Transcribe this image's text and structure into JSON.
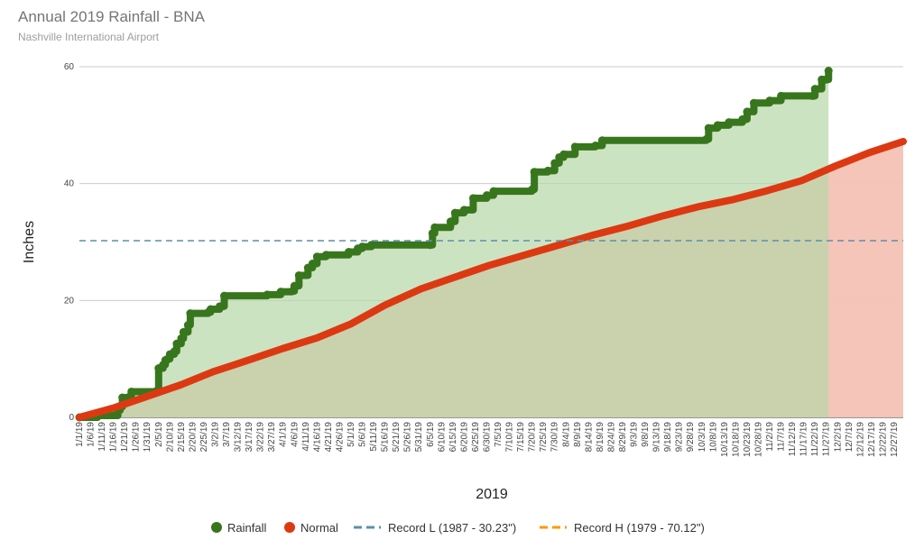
{
  "chart_data": {
    "type": "area",
    "title": "Annual 2019 Rainfall - BNA",
    "subtitle": "Nashville International Airport",
    "xlabel": "2019",
    "ylabel": "Inches",
    "ylim": [
      0,
      60
    ],
    "yticks": [
      0,
      20,
      40,
      60
    ],
    "xlim": [
      "2019-01-01",
      "2019-12-31"
    ],
    "x_tick_labels": [
      "1/1/19",
      "1/6/19",
      "1/11/19",
      "1/16/19",
      "1/21/19",
      "1/26/19",
      "1/31/19",
      "2/5/19",
      "2/10/19",
      "2/15/19",
      "2/20/19",
      "2/25/19",
      "3/2/19",
      "3/7/19",
      "3/12/19",
      "3/17/19",
      "3/22/19",
      "3/27/19",
      "4/1/19",
      "4/6/19",
      "4/11/19",
      "4/16/19",
      "4/21/19",
      "4/26/19",
      "5/1/19",
      "5/6/19",
      "5/11/19",
      "5/16/19",
      "5/21/19",
      "5/26/19",
      "5/31/19",
      "6/5/19",
      "6/10/19",
      "6/15/19",
      "6/20/19",
      "6/25/19",
      "6/30/19",
      "7/5/19",
      "7/10/19",
      "7/15/19",
      "7/20/19",
      "7/25/19",
      "7/30/19",
      "8/4/19",
      "8/9/19",
      "8/14/19",
      "8/19/19",
      "8/24/19",
      "8/29/19",
      "9/3/19",
      "9/8/19",
      "9/13/19",
      "9/18/19",
      "9/23/19",
      "9/28/19",
      "10/3/19",
      "10/8/19",
      "10/13/19",
      "10/18/19",
      "10/23/19",
      "10/28/19",
      "11/2/19",
      "11/7/19",
      "11/12/19",
      "11/17/19",
      "11/22/19",
      "11/27/19",
      "12/2/19",
      "12/7/19",
      "12/12/19",
      "12/17/19",
      "12/22/19",
      "12/27/19"
    ],
    "grid": true,
    "legend_position": "bottom",
    "series": [
      {
        "name": "Rainfall",
        "color": "#38761d",
        "fill": "#b6d7a8",
        "style": "thick-dotted-line-area",
        "points": [
          [
            "2019-01-01",
            0.0
          ],
          [
            "2019-01-09",
            0.3
          ],
          [
            "2019-01-18",
            1.2
          ],
          [
            "2019-01-19",
            1.8
          ],
          [
            "2019-01-20",
            3.4
          ],
          [
            "2019-01-23",
            3.5
          ],
          [
            "2019-01-24",
            4.4
          ],
          [
            "2019-02-04",
            4.5
          ],
          [
            "2019-02-05",
            8.4
          ],
          [
            "2019-02-07",
            9.0
          ],
          [
            "2019-02-08",
            9.8
          ],
          [
            "2019-02-09",
            10.0
          ],
          [
            "2019-02-10",
            10.8
          ],
          [
            "2019-02-12",
            11.3
          ],
          [
            "2019-02-13",
            12.6
          ],
          [
            "2019-02-15",
            13.5
          ],
          [
            "2019-02-16",
            14.6
          ],
          [
            "2019-02-18",
            15.8
          ],
          [
            "2019-02-19",
            17.8
          ],
          [
            "2019-02-27",
            18.0
          ],
          [
            "2019-02-28",
            18.5
          ],
          [
            "2019-03-04",
            19.0
          ],
          [
            "2019-03-06",
            20.8
          ],
          [
            "2019-03-25",
            21.0
          ],
          [
            "2019-03-31",
            21.5
          ],
          [
            "2019-04-05",
            21.6
          ],
          [
            "2019-04-06",
            22.5
          ],
          [
            "2019-04-08",
            24.3
          ],
          [
            "2019-04-12",
            25.6
          ],
          [
            "2019-04-14",
            26.3
          ],
          [
            "2019-04-16",
            27.5
          ],
          [
            "2019-04-20",
            27.8
          ],
          [
            "2019-04-30",
            28.3
          ],
          [
            "2019-05-04",
            28.9
          ],
          [
            "2019-05-06",
            29.2
          ],
          [
            "2019-05-10",
            29.5
          ],
          [
            "2019-06-05",
            29.5
          ],
          [
            "2019-06-06",
            31.5
          ],
          [
            "2019-06-07",
            32.5
          ],
          [
            "2019-06-14",
            33.5
          ],
          [
            "2019-06-16",
            35.0
          ],
          [
            "2019-06-20",
            35.5
          ],
          [
            "2019-06-24",
            37.5
          ],
          [
            "2019-06-30",
            38.0
          ],
          [
            "2019-07-03",
            38.7
          ],
          [
            "2019-07-20",
            39.0
          ],
          [
            "2019-07-21",
            42.0
          ],
          [
            "2019-07-27",
            42.2
          ],
          [
            "2019-07-30",
            43.5
          ],
          [
            "2019-08-01",
            44.5
          ],
          [
            "2019-08-03",
            45.0
          ],
          [
            "2019-08-08",
            46.3
          ],
          [
            "2019-08-17",
            46.5
          ],
          [
            "2019-08-20",
            47.4
          ],
          [
            "2019-10-05",
            47.6
          ],
          [
            "2019-10-06",
            49.5
          ],
          [
            "2019-10-10",
            50.0
          ],
          [
            "2019-10-15",
            50.5
          ],
          [
            "2019-10-21",
            51.0
          ],
          [
            "2019-10-23",
            52.3
          ],
          [
            "2019-10-26",
            53.8
          ],
          [
            "2019-11-02",
            54.2
          ],
          [
            "2019-11-07",
            55.0
          ],
          [
            "2019-11-21",
            55.0
          ],
          [
            "2019-11-22",
            56.2
          ],
          [
            "2019-11-25",
            57.8
          ],
          [
            "2019-11-27",
            57.8
          ],
          [
            "2019-11-28",
            59.3
          ]
        ]
      },
      {
        "name": "Normal",
        "color": "#dc3912",
        "fill": "#f4c2b6",
        "style": "thick-line-area",
        "points": [
          [
            "2019-01-01",
            0.0
          ],
          [
            "2019-01-16",
            1.6
          ],
          [
            "2019-01-31",
            3.6
          ],
          [
            "2019-02-15",
            5.6
          ],
          [
            "2019-03-01",
            7.8
          ],
          [
            "2019-03-16",
            9.7
          ],
          [
            "2019-04-01",
            11.8
          ],
          [
            "2019-04-16",
            13.6
          ],
          [
            "2019-05-01",
            16.0
          ],
          [
            "2019-05-16",
            19.2
          ],
          [
            "2019-06-01",
            22.0
          ],
          [
            "2019-06-16",
            24.0
          ],
          [
            "2019-07-01",
            26.0
          ],
          [
            "2019-07-16",
            27.7
          ],
          [
            "2019-08-01",
            29.5
          ],
          [
            "2019-08-16",
            31.2
          ],
          [
            "2019-09-01",
            32.8
          ],
          [
            "2019-09-16",
            34.5
          ],
          [
            "2019-10-01",
            36.0
          ],
          [
            "2019-10-16",
            37.2
          ],
          [
            "2019-11-01",
            38.8
          ],
          [
            "2019-11-16",
            40.5
          ],
          [
            "2019-12-01",
            43.0
          ],
          [
            "2019-12-16",
            45.3
          ],
          [
            "2019-12-31",
            47.2
          ]
        ]
      },
      {
        "name": "Record L (1987 - 30.23\")",
        "color": "#5b8fa8",
        "style": "dashed-line",
        "value": 30.23
      },
      {
        "name": "Record H (1979 - 70.12\")",
        "color": "#ff9900",
        "style": "dashed-line",
        "value": 70.12
      }
    ]
  }
}
